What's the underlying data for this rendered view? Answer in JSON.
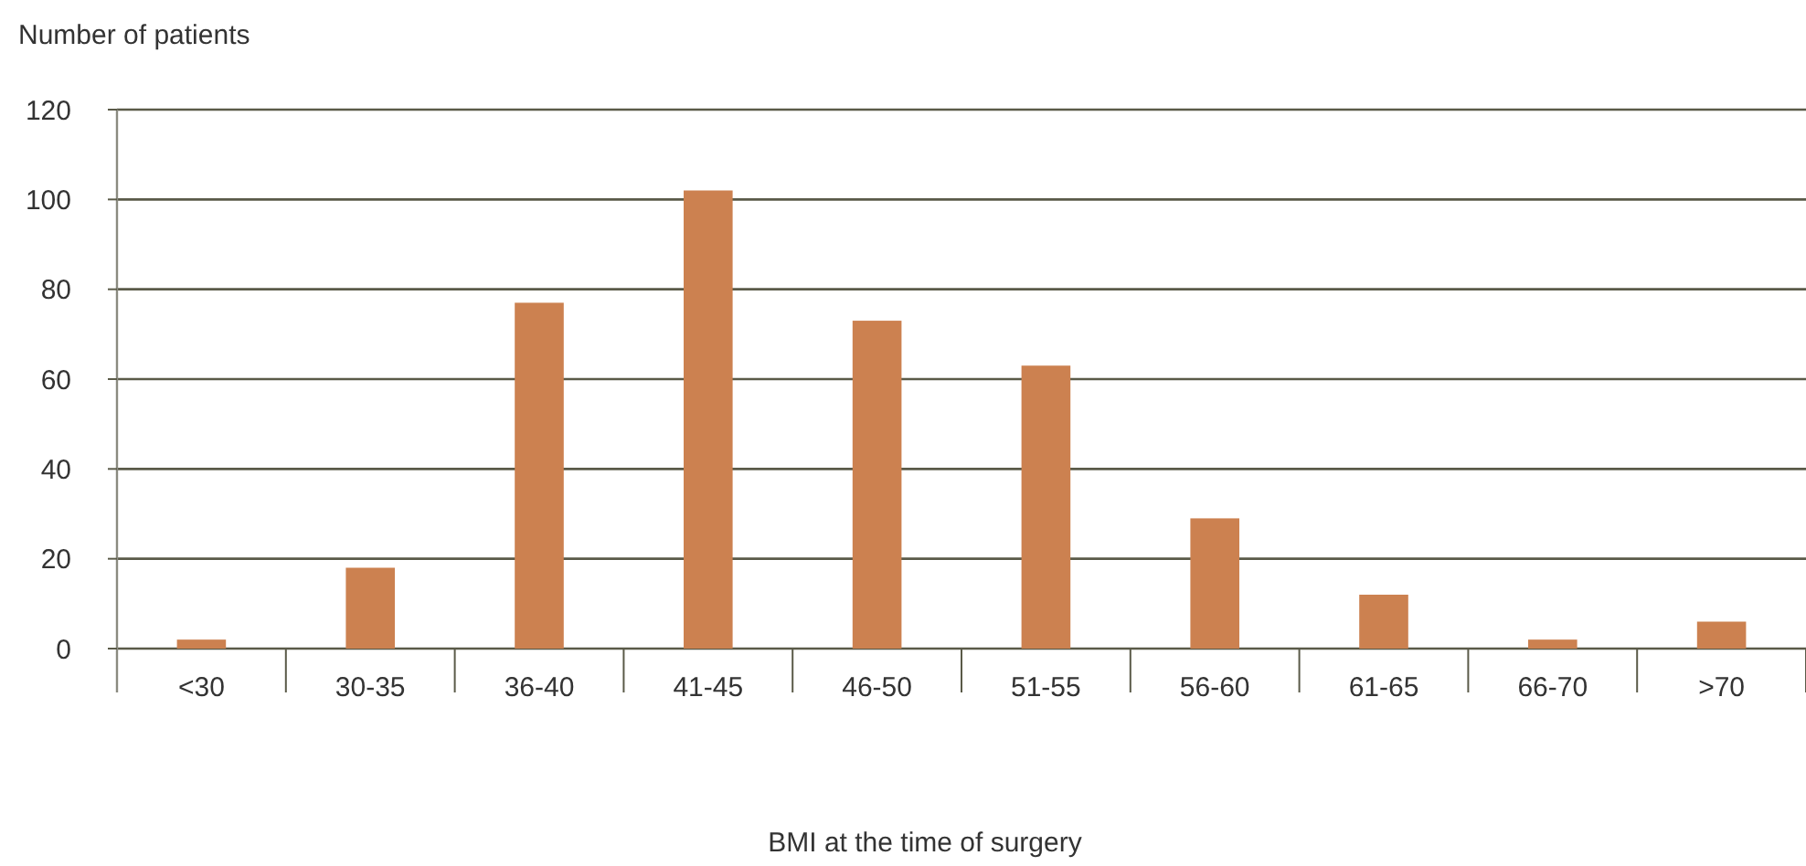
{
  "chart_data": {
    "type": "bar",
    "xlabel": "BMI at the time of surgery",
    "ylabel": "Number of patients",
    "categories": [
      "<30",
      "30-35",
      "36-40",
      "41-45",
      "46-50",
      "51-55",
      "56-60",
      "61-65",
      "66-70",
      ">70"
    ],
    "values": [
      2,
      18,
      77,
      102,
      73,
      63,
      29,
      12,
      2,
      6
    ],
    "color": "#cc8150",
    "ylim": [
      0,
      120
    ],
    "yticks": [
      0,
      20,
      40,
      60,
      80,
      100,
      120
    ],
    "grid": "y"
  }
}
